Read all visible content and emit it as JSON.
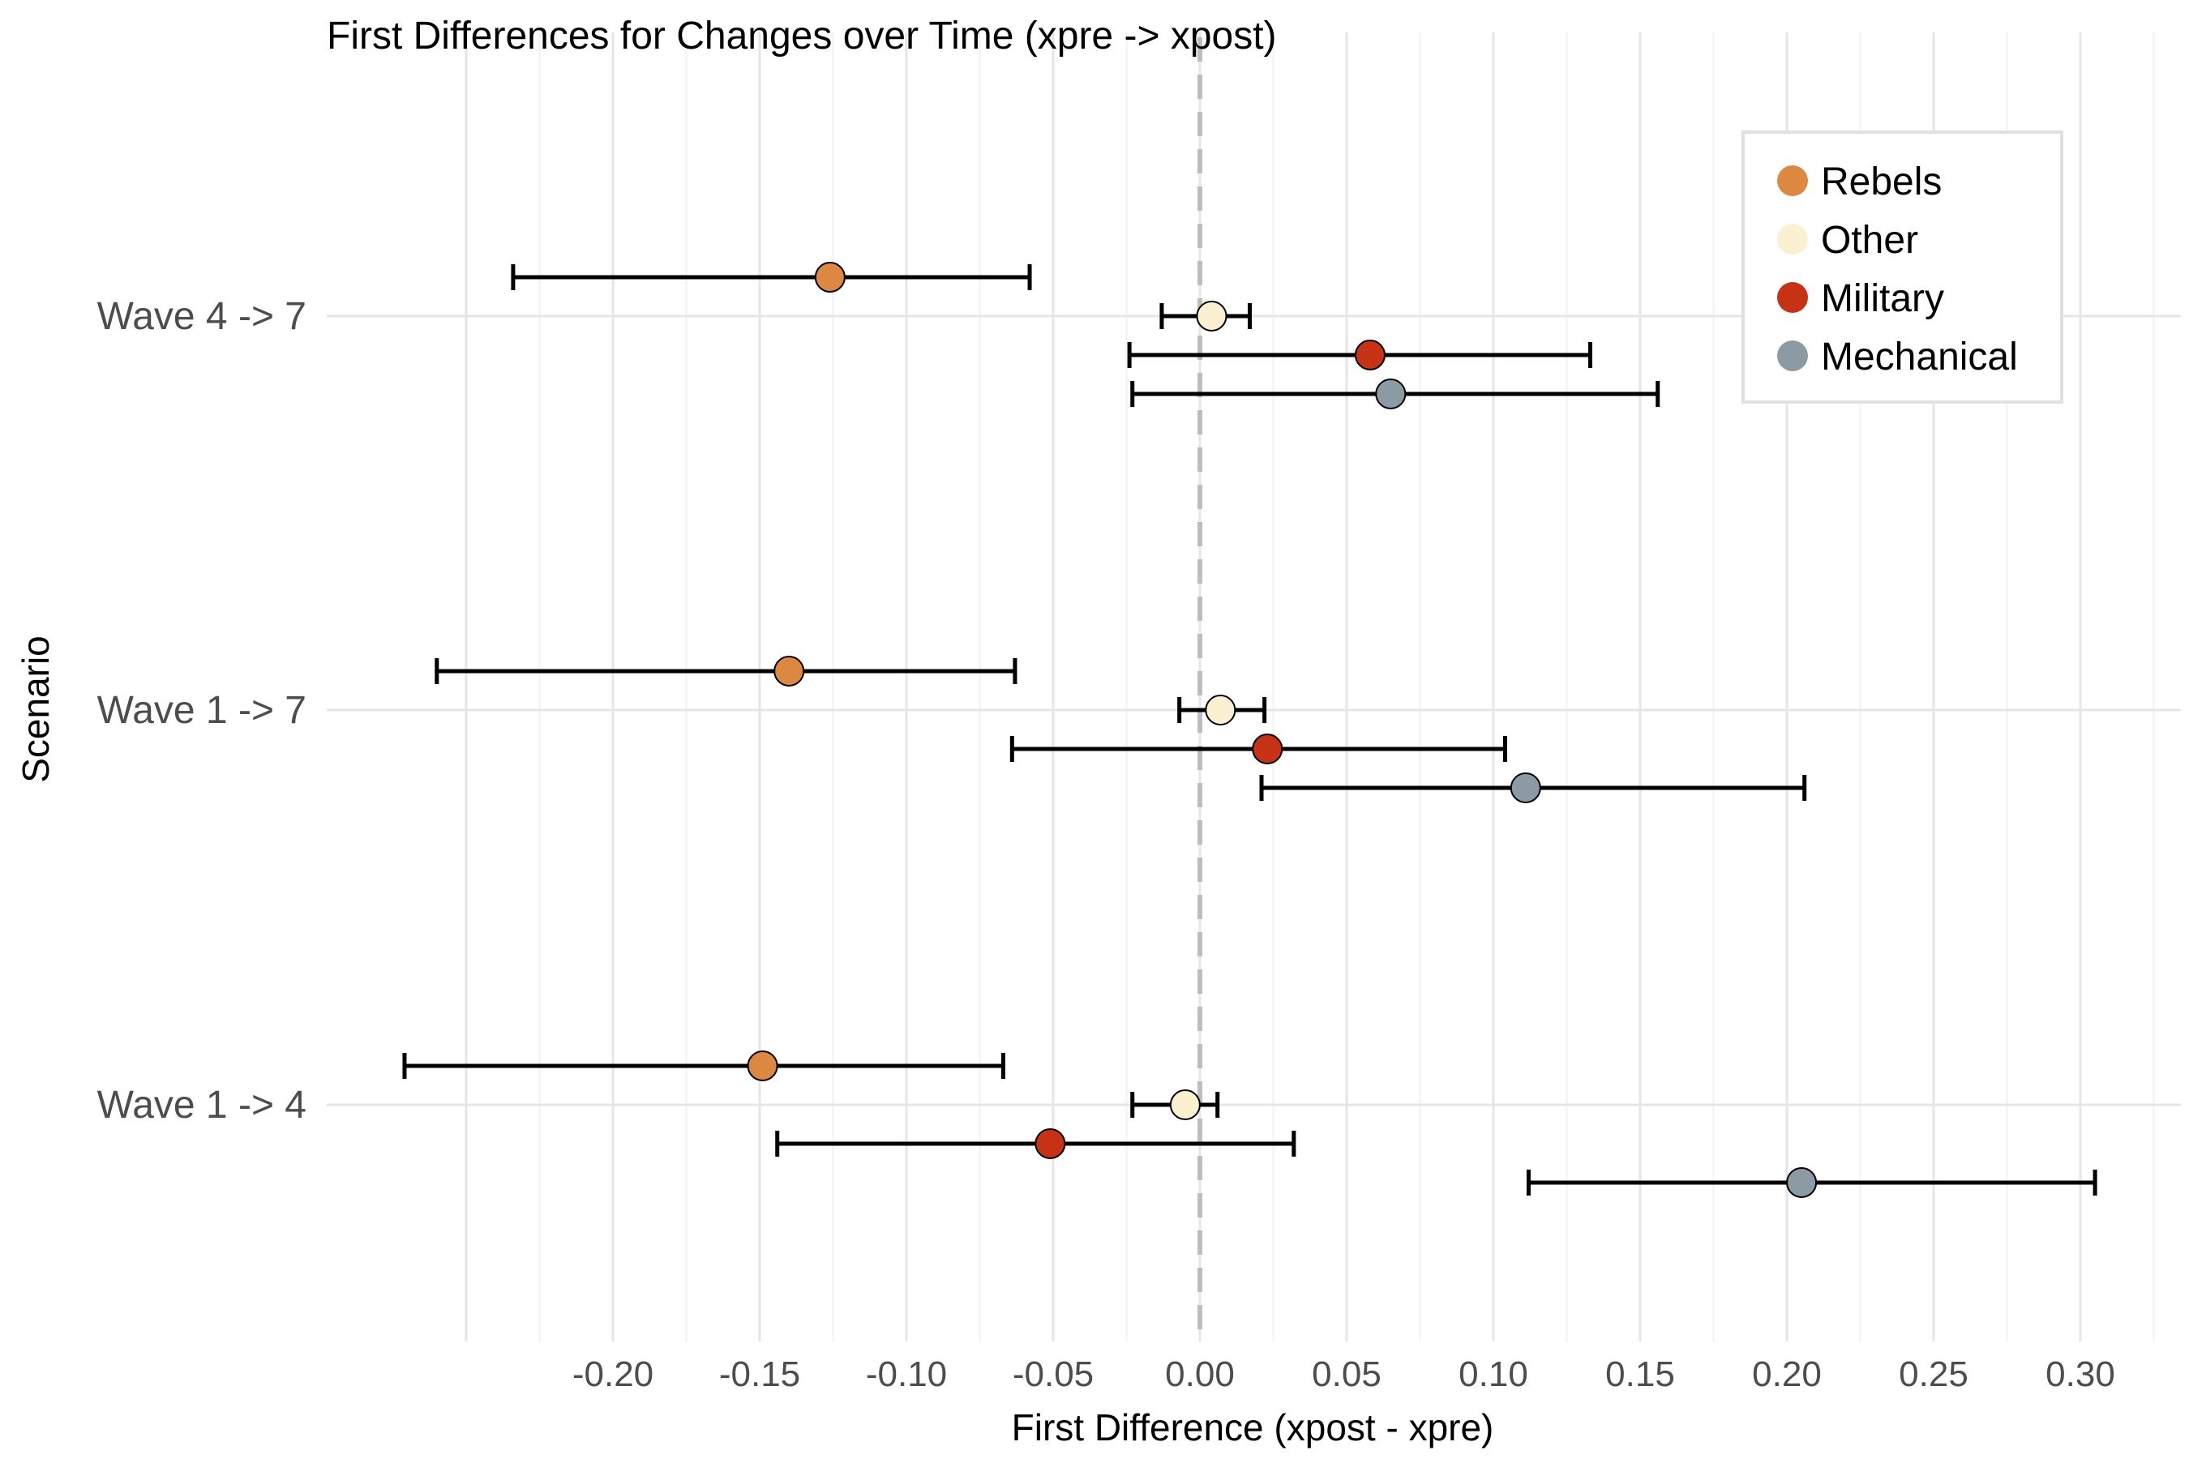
{
  "chart_data": {
    "type": "scatter",
    "title": "First Differences for Changes over Time (xpre -> xpost)",
    "xlabel": "First Difference (xpost - xpre)",
    "ylabel": "Scenario",
    "xlim": [
      -0.2715,
      0.3215
    ],
    "x_ticks": [
      "-0.20",
      "-0.15",
      "-0.10",
      "-0.05",
      "0.00",
      "0.05",
      "0.10",
      "0.15",
      "0.20",
      "0.25",
      "0.30"
    ],
    "x_tick_values": [
      -0.2,
      -0.15,
      -0.1,
      -0.05,
      0.0,
      0.05,
      0.1,
      0.15,
      0.2,
      0.25,
      0.3
    ],
    "categories": [
      "Wave 4 -> 7",
      "Wave 1 -> 7",
      "Wave 1 -> 4"
    ],
    "reference_line": 0,
    "grid": true,
    "legend_position": "top-right",
    "series": [
      {
        "name": "Mechanical",
        "color": "#8C9BA3",
        "points": [
          {
            "category": "Wave 4 -> 7",
            "estimate": 0.065,
            "lower": -0.023,
            "upper": 0.156
          },
          {
            "category": "Wave 1 -> 7",
            "estimate": 0.111,
            "lower": 0.021,
            "upper": 0.206
          },
          {
            "category": "Wave 1 -> 4",
            "estimate": 0.205,
            "lower": 0.112,
            "upper": 0.305
          }
        ]
      },
      {
        "name": "Military",
        "color": "#C83214",
        "points": [
          {
            "category": "Wave 4 -> 7",
            "estimate": 0.058,
            "lower": -0.024,
            "upper": 0.133
          },
          {
            "category": "Wave 1 -> 7",
            "estimate": 0.023,
            "lower": -0.064,
            "upper": 0.104
          },
          {
            "category": "Wave 1 -> 4",
            "estimate": -0.051,
            "lower": -0.144,
            "upper": 0.032
          }
        ]
      },
      {
        "name": "Other",
        "color": "#FBF0D0",
        "points": [
          {
            "category": "Wave 4 -> 7",
            "estimate": 0.004,
            "lower": -0.013,
            "upper": 0.017
          },
          {
            "category": "Wave 1 -> 7",
            "estimate": 0.007,
            "lower": -0.007,
            "upper": 0.022
          },
          {
            "category": "Wave 1 -> 4",
            "estimate": -0.005,
            "lower": -0.023,
            "upper": 0.006
          }
        ]
      },
      {
        "name": "Rebels",
        "color": "#DC8840",
        "points": [
          {
            "category": "Wave 4 -> 7",
            "estimate": -0.126,
            "lower": -0.234,
            "upper": -0.058
          },
          {
            "category": "Wave 1 -> 7",
            "estimate": -0.14,
            "lower": -0.26,
            "upper": -0.063
          },
          {
            "category": "Wave 1 -> 4",
            "estimate": -0.149,
            "lower": -0.271,
            "upper": -0.067
          }
        ]
      }
    ]
  }
}
